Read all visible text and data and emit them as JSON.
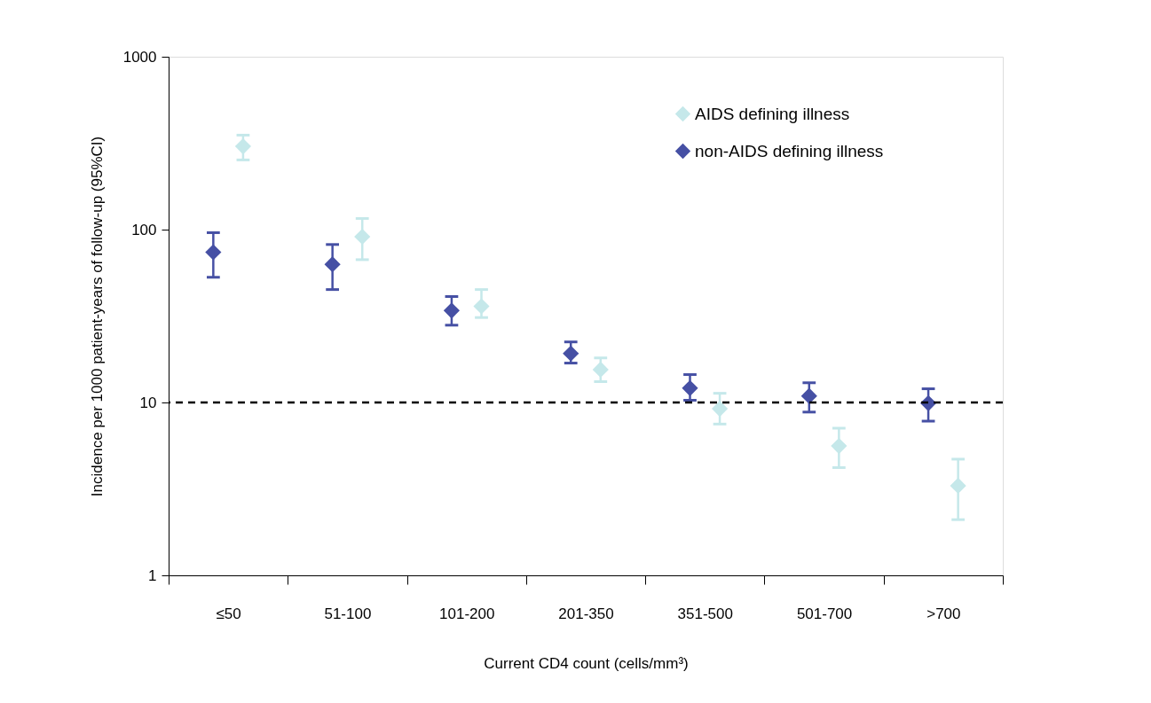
{
  "chart_data": {
    "type": "scatter",
    "xlabel": "Current CD4 count (cells/mm³)",
    "ylabel": "Incidence per 1000 patient-years of follow-up (95%CI)",
    "categories": [
      "≤50",
      "51-100",
      "101-200",
      "201-350",
      "351-500",
      "501-700",
      ">700"
    ],
    "series": [
      {
        "name": "AIDS defining illness",
        "color": "#c5e8ea",
        "values": [
          303,
          91,
          36,
          15.5,
          9.2,
          5.6,
          3.3
        ],
        "errors": [
          [
            253,
            352
          ],
          [
            67,
            116
          ],
          [
            31,
            45
          ],
          [
            13.2,
            18.1
          ],
          [
            7.5,
            11.3
          ],
          [
            4.2,
            7.1
          ],
          [
            2.1,
            4.7
          ]
        ]
      },
      {
        "name": "non-AIDS defining illness",
        "color": "#4650a4",
        "values": [
          74,
          63,
          34,
          19.2,
          12.1,
          10.9,
          9.9
        ],
        "errors": [
          [
            53,
            96
          ],
          [
            45,
            82
          ],
          [
            28,
            41
          ],
          [
            16.9,
            22.4
          ],
          [
            10.3,
            14.5
          ],
          [
            8.8,
            13.0
          ],
          [
            7.8,
            12.0
          ]
        ]
      }
    ],
    "log": "y",
    "ylim": [
      1,
      1000
    ],
    "yticks": [
      1,
      10,
      100,
      {
        "value": 1000,
        "label": "1000"
      }
    ],
    "ref_lines": [
      {
        "axis": "y",
        "value": 10,
        "color": "#000000",
        "line_style": "dashed"
      }
    ],
    "marker": "diamond",
    "grid": false,
    "legend": "top right"
  }
}
